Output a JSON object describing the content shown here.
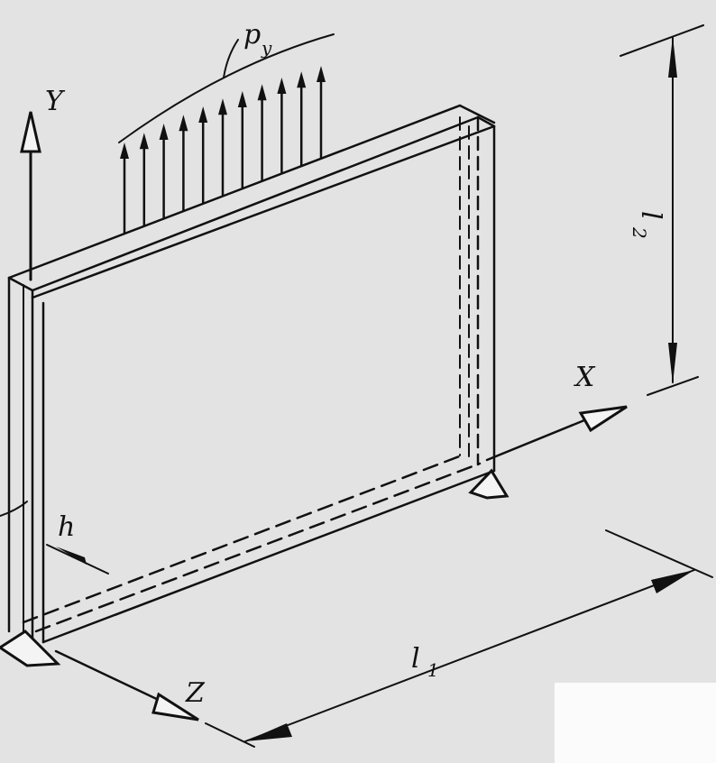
{
  "figure": {
    "background_color": "#e6e6e6",
    "ink_color": "#111111",
    "labels": {
      "axis_y": "Y",
      "axis_x": "X",
      "axis_z": "Z",
      "load_main": "p",
      "load_sub": "y",
      "thickness": "h",
      "length_l1_main": "l",
      "length_l1_sub": "1",
      "length_l2_main": "l",
      "length_l2_sub": "2"
    },
    "load_arrow_count": 11
  }
}
